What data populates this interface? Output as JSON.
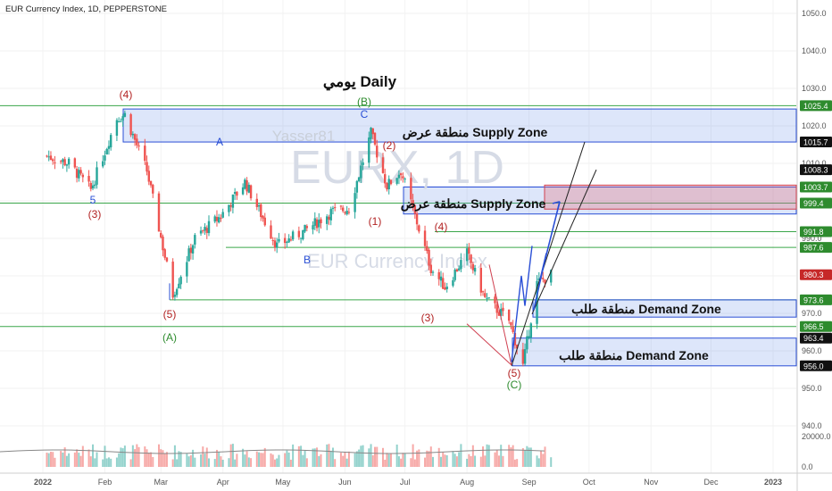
{
  "header": {
    "symbol_title": "EUR Currency Index, 1D, PEPPERSTONE",
    "chart_title": "يومي Daily",
    "author_watermark": "Yasser81",
    "big_watermark": "EURX, 1D",
    "sub_watermark": "EUR Currency Index"
  },
  "chart_data": {
    "type": "candlestick",
    "y_axis_ticks": [
      1050.0,
      1040.0,
      1030.0,
      1020.0,
      1010.0,
      1000.0,
      990.0,
      980.0,
      970.0,
      960.0,
      950.0,
      940.0
    ],
    "volume_ticks": [
      "20000.0",
      "0.0"
    ],
    "x_axis_ticks": [
      "2022",
      "Feb",
      "Mar",
      "Apr",
      "May",
      "Jun",
      "Jul",
      "Aug",
      "Sep",
      "Oct",
      "Nov",
      "Dec",
      "2023"
    ],
    "ylim": [
      935,
      1055
    ],
    "price_badges": [
      {
        "value": "1025.4",
        "color": "#2e8b2e"
      },
      {
        "value": "1015.7",
        "color": "#111111"
      },
      {
        "value": "1008.3",
        "color": "#111111"
      },
      {
        "value": "1003.7",
        "color": "#2e8b2e"
      },
      {
        "value": "999.4",
        "color": "#2e8b2e"
      },
      {
        "value": "991.8",
        "color": "#2e8b2e"
      },
      {
        "value": "987.6",
        "color": "#2e8b2e"
      },
      {
        "value": "980.3",
        "color": "#c62828"
      },
      {
        "value": "973.6",
        "color": "#2e8b2e"
      },
      {
        "value": "966.5",
        "color": "#2e8b2e"
      },
      {
        "value": "963.4",
        "color": "#111111"
      },
      {
        "value": "956.0",
        "color": "#111111"
      }
    ],
    "zones": [
      {
        "label": "منطقة عرض Supply Zone",
        "top": 1024.5,
        "bottom": 1015.7,
        "x_start": "Feb",
        "kind": "supply"
      },
      {
        "label": "منطقة عرض Supply Zone",
        "top": 1003.7,
        "bottom": 996.5,
        "x_start": "Jul",
        "kind": "supply"
      },
      {
        "label": "منطقة طلب Demand Zone",
        "top": 973.6,
        "bottom": 969.0,
        "x_start": "Sep",
        "kind": "demand"
      },
      {
        "label": "منطقة طلب Demand Zone",
        "top": 963.4,
        "bottom": 956.0,
        "x_start": "Aug",
        "kind": "demand"
      }
    ],
    "wave_labels": [
      {
        "text": "(4)",
        "color": "red"
      },
      {
        "text": "5",
        "color": "blue"
      },
      {
        "text": "(3)",
        "color": "red"
      },
      {
        "text": "(5)",
        "color": "red"
      },
      {
        "text": "(A)",
        "color": "green"
      },
      {
        "text": "A",
        "color": "blue"
      },
      {
        "text": "B",
        "color": "blue"
      },
      {
        "text": "(B)",
        "color": "green"
      },
      {
        "text": "C",
        "color": "blue"
      },
      {
        "text": "(2)",
        "color": "red"
      },
      {
        "text": "(1)",
        "color": "red"
      },
      {
        "text": "(4)",
        "color": "red"
      },
      {
        "text": "(3)",
        "color": "red"
      },
      {
        "text": "(5)",
        "color": "red"
      },
      {
        "text": "(C)",
        "color": "green"
      }
    ],
    "series": [
      {
        "date": "2022-01-03",
        "close": 1012
      },
      {
        "date": "2022-01-14",
        "close": 1010
      },
      {
        "date": "2022-01-25",
        "close": 1003
      },
      {
        "date": "2022-02-07",
        "close": 1022
      },
      {
        "date": "2022-02-11",
        "close": 1023
      },
      {
        "date": "2022-02-22",
        "close": 1008
      },
      {
        "date": "2022-03-07",
        "close": 975
      },
      {
        "date": "2022-03-18",
        "close": 990
      },
      {
        "date": "2022-03-31",
        "close": 996
      },
      {
        "date": "2022-04-12",
        "close": 1005
      },
      {
        "date": "2022-04-28",
        "close": 988
      },
      {
        "date": "2022-05-12",
        "close": 992
      },
      {
        "date": "2022-05-25",
        "close": 997
      },
      {
        "date": "2022-06-03",
        "close": 998
      },
      {
        "date": "2022-06-14",
        "close": 1018
      },
      {
        "date": "2022-06-22",
        "close": 1004
      },
      {
        "date": "2022-06-29",
        "close": 1008
      },
      {
        "date": "2022-07-06",
        "close": 996
      },
      {
        "date": "2022-07-14",
        "close": 982
      },
      {
        "date": "2022-07-21",
        "close": 977
      },
      {
        "date": "2022-08-01",
        "close": 986
      },
      {
        "date": "2022-08-10",
        "close": 974
      },
      {
        "date": "2022-08-22",
        "close": 968
      },
      {
        "date": "2022-08-29",
        "close": 956
      },
      {
        "date": "2022-09-05",
        "close": 978
      },
      {
        "date": "2022-09-12",
        "close": 980.3
      }
    ],
    "projection": "up",
    "grid": true
  }
}
